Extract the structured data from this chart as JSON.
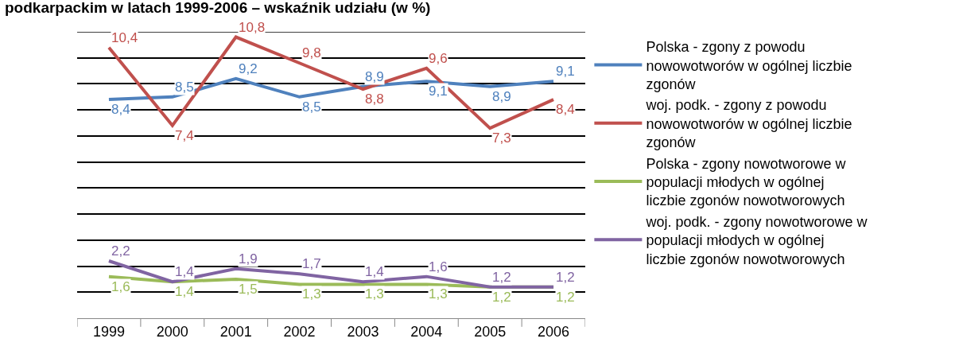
{
  "chart_data": {
    "type": "line",
    "title": "podkarpackim w latach 1999-2006 – wskaźnik udziału (w %)",
    "categories": [
      "1999",
      "2000",
      "2001",
      "2002",
      "2003",
      "2004",
      "2005",
      "2006"
    ],
    "series": [
      {
        "name": "Polska - zgony z powodu nowowotworów w ogólnej liczbie zgonów",
        "color": "#4f81bd",
        "values": [
          8.4,
          8.5,
          9.2,
          8.5,
          8.9,
          9.1,
          8.9,
          9.1
        ],
        "value_labels": [
          "8,4",
          "8,5",
          "9,2",
          "8,5",
          "8,9",
          "9,1",
          "8,9",
          "9,1"
        ]
      },
      {
        "name": "woj. podk. - zgony z powodu nowowotworów w ogólnej liczbie zgonów",
        "color": "#c0504d",
        "values": [
          10.4,
          7.4,
          10.8,
          9.8,
          8.8,
          9.6,
          7.3,
          8.4
        ],
        "value_labels": [
          "10,4",
          "7,4",
          "10,8",
          "9,8",
          "8,8",
          "9,6",
          "7,3",
          "8,4"
        ]
      },
      {
        "name": "Polska - zgony nowotworowe w populacji młodych w ogólnej liczbie zgonów nowotworowych",
        "color": "#9bbb59",
        "values": [
          1.6,
          1.4,
          1.5,
          1.3,
          1.3,
          1.3,
          1.2,
          1.2
        ],
        "value_labels": [
          "1,6",
          "1,4",
          "1,5",
          "1,3",
          "1,3",
          "1,3",
          "1,2",
          "1,2"
        ]
      },
      {
        "name": "woj. podk. - zgony nowotworowe w populacji młodych w ogólnej liczbie zgonów nowotworowych",
        "color": "#8064a2",
        "values": [
          2.2,
          1.4,
          1.9,
          1.7,
          1.4,
          1.6,
          1.2,
          1.2
        ],
        "value_labels": [
          "2,2",
          "1,4",
          "1,9",
          "1,7",
          "1,4",
          "1,6",
          "1,2",
          "1,2"
        ]
      }
    ],
    "ylim": [
      0,
      11
    ],
    "yticks": [
      {
        "value": 0,
        "label": null
      },
      {
        "value": 1,
        "label": null
      },
      {
        "value": 2,
        "label": null
      },
      {
        "value": 3,
        "label": null
      },
      {
        "value": 4,
        "label": null
      },
      {
        "value": 5,
        "label": null
      },
      {
        "value": 6,
        "label": null
      },
      {
        "value": 7,
        "label": null
      },
      {
        "value": 8,
        "label": null
      },
      {
        "value": 9,
        "label": null
      },
      {
        "value": 10,
        "label": null
      },
      {
        "value": 11,
        "label": null
      }
    ],
    "tick_labels": "x",
    "grid": "y",
    "legend": "right",
    "marker": "none",
    "line_style": "solid"
  }
}
